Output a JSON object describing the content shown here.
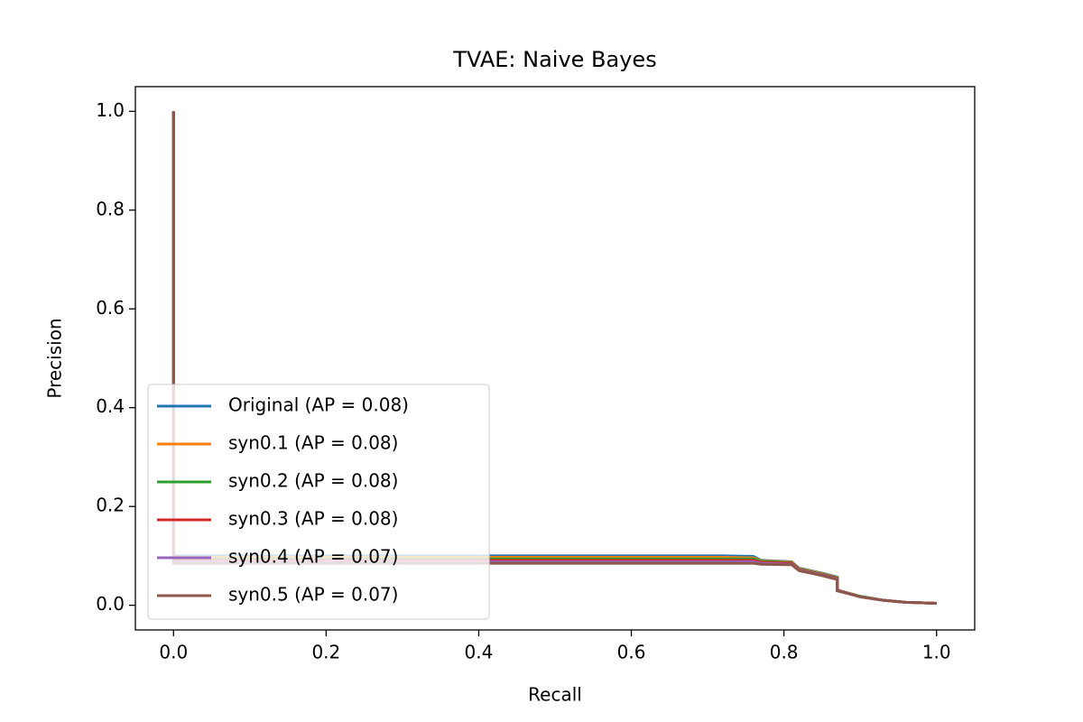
{
  "chart_data": {
    "type": "line",
    "title": "TVAE: Naive Bayes",
    "xlabel": "Recall",
    "ylabel": "Precision",
    "x": [
      0,
      0,
      0.01,
      0.4,
      0.72,
      0.76,
      0.77,
      0.81,
      0.82,
      0.85,
      0.87,
      0.87,
      0.9,
      0.93,
      0.96,
      1.0
    ],
    "series": [
      {
        "name": "Original (AP = 0.08)",
        "color": "#1f77b4",
        "values": [
          1.0,
          0.1,
          0.1,
          0.1,
          0.1,
          0.099,
          0.091,
          0.088,
          0.075,
          0.065,
          0.057,
          0.031,
          0.018,
          0.01,
          0.006,
          0.004
        ]
      },
      {
        "name": "syn0.1 (AP = 0.08)",
        "color": "#ff7f0e",
        "values": [
          1.0,
          0.097,
          0.097,
          0.097,
          0.097,
          0.096,
          0.09,
          0.087,
          0.074,
          0.064,
          0.056,
          0.031,
          0.018,
          0.01,
          0.006,
          0.004
        ]
      },
      {
        "name": "syn0.2 (AP = 0.08)",
        "color": "#2ca02c",
        "values": [
          1.0,
          0.094,
          0.094,
          0.094,
          0.094,
          0.094,
          0.089,
          0.086,
          0.073,
          0.063,
          0.055,
          0.03,
          0.018,
          0.01,
          0.006,
          0.004
        ]
      },
      {
        "name": "syn0.3 (AP = 0.08)",
        "color": "#d62728",
        "values": [
          1.0,
          0.091,
          0.091,
          0.091,
          0.091,
          0.091,
          0.087,
          0.085,
          0.072,
          0.062,
          0.054,
          0.03,
          0.017,
          0.01,
          0.006,
          0.004
        ]
      },
      {
        "name": "syn0.4 (AP = 0.07)",
        "color": "#9467bd",
        "values": [
          1.0,
          0.088,
          0.088,
          0.088,
          0.088,
          0.088,
          0.085,
          0.083,
          0.071,
          0.061,
          0.053,
          0.03,
          0.017,
          0.01,
          0.006,
          0.004
        ]
      },
      {
        "name": "syn0.5 (AP = 0.07)",
        "color": "#8c564b",
        "values": [
          1.0,
          0.085,
          0.085,
          0.085,
          0.085,
          0.085,
          0.083,
          0.082,
          0.07,
          0.06,
          0.052,
          0.029,
          0.017,
          0.01,
          0.006,
          0.004
        ]
      }
    ],
    "xlim": [
      -0.05,
      1.05
    ],
    "ylim": [
      -0.05,
      1.05
    ],
    "xticks": [
      {
        "value": 0,
        "label": "0.0"
      },
      0.2,
      0.4,
      0.6,
      0.8,
      {
        "value": 1,
        "label": "1.0"
      }
    ],
    "yticks": [
      {
        "value": 0,
        "label": "0.0"
      },
      0.2,
      0.4,
      0.6,
      0.8,
      {
        "value": 1,
        "label": "1.0"
      }
    ],
    "legend": "lower left"
  }
}
